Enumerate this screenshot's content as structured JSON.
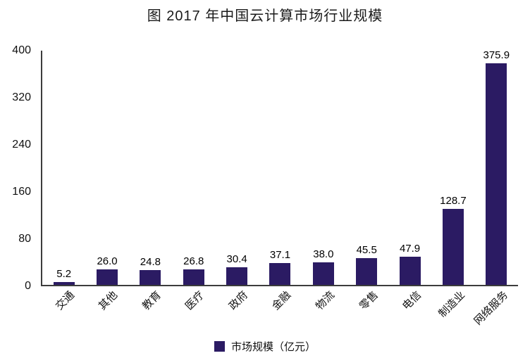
{
  "chart_data": {
    "type": "bar",
    "title": "图  2017 年中国云计算市场行业规模",
    "categories": [
      "交通",
      "其他",
      "教育",
      "医疗",
      "政府",
      "金融",
      "物流",
      "零售",
      "电信",
      "制造业",
      "网络服务"
    ],
    "values": [
      5.2,
      26.0,
      24.8,
      26.8,
      30.4,
      37.1,
      38.0,
      45.5,
      47.9,
      128.7,
      375.9
    ],
    "value_labels": [
      "5.2",
      "26.0",
      "24.8",
      "26.8",
      "30.4",
      "37.1",
      "38.0",
      "45.5",
      "47.9",
      "128.7",
      "375.9"
    ],
    "xlabel": "",
    "ylabel": "",
    "ylim": [
      0,
      400
    ],
    "yticks": [
      0,
      80,
      160,
      240,
      320,
      400
    ],
    "grid": false,
    "legend_position": "bottom",
    "legend": [
      "市场规模（亿元）"
    ],
    "bar_color": "#2b1b63",
    "axis_color": "#3c3c3c"
  },
  "legend": {
    "label": "市场规模（亿元）"
  }
}
